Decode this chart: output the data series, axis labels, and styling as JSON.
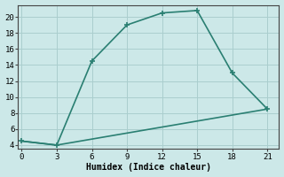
{
  "xlabel": "Humidex (Indice chaleur)",
  "line1_x": [
    0,
    3,
    6,
    9,
    12,
    15,
    18,
    21
  ],
  "line1_y": [
    4.5,
    4.0,
    14.5,
    19.0,
    20.5,
    20.8,
    13.0,
    8.5
  ],
  "line2_x": [
    0,
    3,
    21
  ],
  "line2_y": [
    4.5,
    4.0,
    8.5
  ],
  "line_color": "#2a7f72",
  "bg_color": "#cce8e8",
  "grid_color": "#aacece",
  "xlim": [
    -0.3,
    22
  ],
  "ylim": [
    3.5,
    21.5
  ],
  "xticks": [
    0,
    3,
    6,
    9,
    12,
    15,
    18,
    21
  ],
  "yticks": [
    4,
    6,
    8,
    10,
    12,
    14,
    16,
    18,
    20
  ],
  "marker": "+",
  "markersize": 5,
  "linewidth": 1.2
}
